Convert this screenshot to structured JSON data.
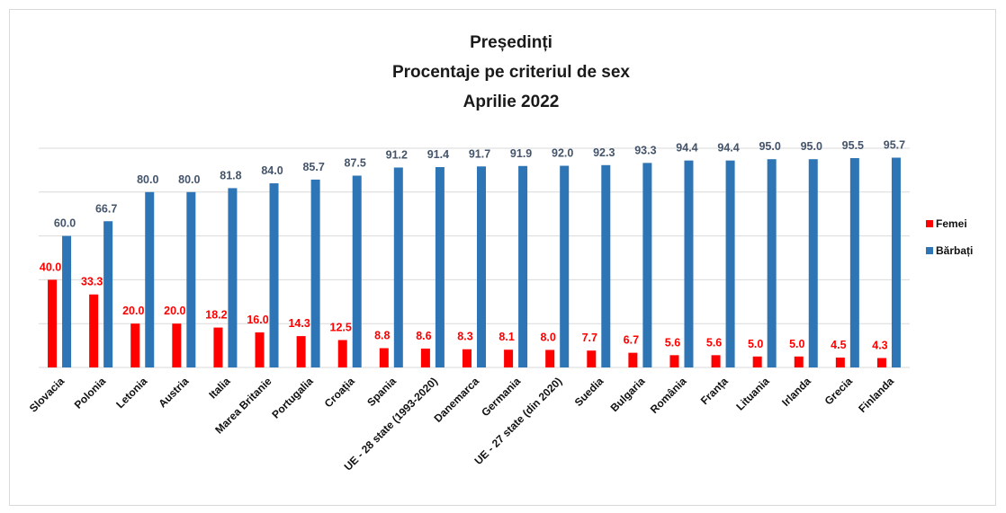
{
  "chart_data": {
    "type": "bar",
    "title": [
      "Președinți",
      "Procentaje pe criteriul de sex",
      "Aprilie 2022"
    ],
    "categories": [
      "Slovacia",
      "Polonia",
      "Letonia",
      "Austria",
      "Italia",
      "Marea Britanie",
      "Portugalia",
      "Croația",
      "Spania",
      "UE - 28 state (1993-2020)",
      "Danemarca",
      "Germania",
      "UE - 27 state (din 2020)",
      "Suedia",
      "Bulgaria",
      "România",
      "Franța",
      "Lituania",
      "Irlanda",
      "Grecia",
      "Finlanda"
    ],
    "series": [
      {
        "name": "Femei",
        "color": "#ff0000",
        "values": [
          40.0,
          33.3,
          20.0,
          20.0,
          18.2,
          16.0,
          14.3,
          12.5,
          8.8,
          8.6,
          8.3,
          8.1,
          8.0,
          7.7,
          6.7,
          5.6,
          5.6,
          5.0,
          5.0,
          4.5,
          4.3
        ]
      },
      {
        "name": "Bărbați",
        "color": "#2e75b6",
        "values": [
          60.0,
          66.7,
          80.0,
          80.0,
          81.8,
          84.0,
          85.7,
          87.5,
          91.2,
          91.4,
          91.7,
          91.9,
          92.0,
          92.3,
          93.3,
          94.4,
          94.4,
          95.0,
          95.0,
          95.5,
          95.7
        ]
      }
    ],
    "ylim": [
      0,
      100
    ],
    "grid": true,
    "legend": "right"
  }
}
